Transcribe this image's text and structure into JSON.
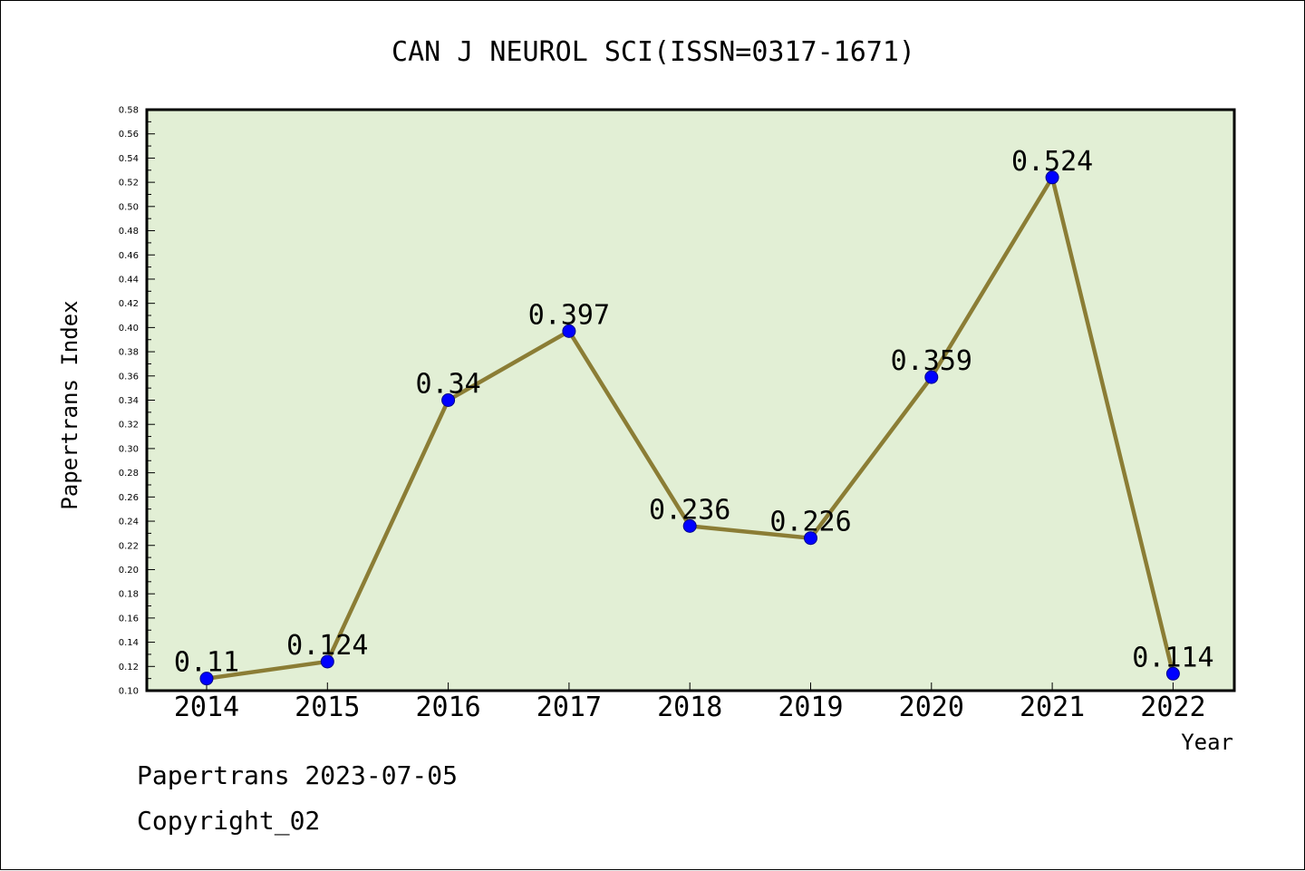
{
  "chart_data": {
    "type": "line",
    "title": "CAN J NEUROL SCI(ISSN=0317-1671)",
    "xlabel": "Year",
    "ylabel": "Papertrans Index",
    "categories": [
      "2014",
      "2015",
      "2016",
      "2017",
      "2018",
      "2019",
      "2020",
      "2021",
      "2022"
    ],
    "series": [
      {
        "values": [
          0.11,
          0.124,
          0.34,
          0.397,
          0.236,
          0.226,
          0.359,
          0.524,
          0.114
        ],
        "value_labels": [
          "0.11",
          "0.124",
          "0.34",
          "0.397",
          "0.236",
          "0.226",
          "0.359",
          "0.524",
          "0.114"
        ]
      }
    ],
    "ylim": [
      0.1,
      0.58
    ],
    "yticks": [
      "0.10",
      "0.12",
      "0.14",
      "0.16",
      "0.18",
      "0.20",
      "0.22",
      "0.24",
      "0.26",
      "0.28",
      "0.30",
      "0.32",
      "0.34",
      "0.36",
      "0.38",
      "0.40",
      "0.42",
      "0.44",
      "0.46",
      "0.48",
      "0.50",
      "0.52",
      "0.54",
      "0.56",
      "0.58"
    ],
    "grid": false,
    "colors": {
      "plot_background": "#e2efd5",
      "line": "#8b7d35",
      "marker": "#0000ff"
    }
  },
  "footer": {
    "line1": "Papertrans 2023-07-05",
    "line2": "Copyright_02"
  }
}
